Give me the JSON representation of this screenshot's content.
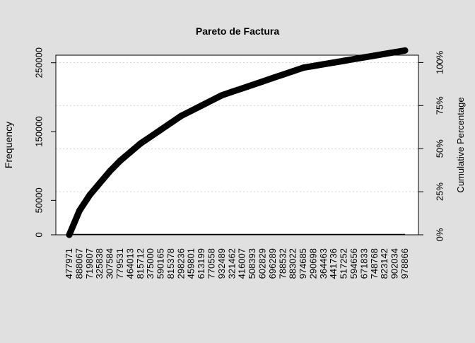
{
  "chart_data": {
    "type": "line",
    "title": "Pareto de Factura",
    "ylabel": "Frequency",
    "y2label": "Cumulative Percentage",
    "ylim": [
      0,
      261000
    ],
    "y_ticks": [
      0,
      50000,
      150000,
      250000
    ],
    "y_tick_labels": [
      "0",
      "50000",
      "150000",
      "250000"
    ],
    "y2_ticks": [
      0,
      25,
      50,
      75,
      100
    ],
    "y2_tick_labels": [
      "0%",
      "25%",
      "50%",
      "75%",
      "100%"
    ],
    "categories": [
      "477971",
      "888067",
      "719807",
      "325838",
      "307584",
      "779531",
      "464013",
      "815712",
      "375000",
      "590165",
      "815378",
      "298236",
      "459801",
      "613199",
      "770558",
      "932489",
      "321462",
      "416007",
      "508393",
      "602829",
      "696289",
      "788532",
      "883022",
      "974685",
      "290698",
      "364463",
      "441736",
      "517252",
      "594656",
      "671833",
      "748768",
      "823142",
      "902034",
      "978866"
    ],
    "series": [
      {
        "y2_values_pct": [
          0,
          14,
          23,
          30,
          37,
          43,
          48,
          53,
          57,
          61,
          65,
          69,
          72,
          75,
          78,
          81,
          83,
          85,
          87,
          89,
          91,
          93,
          95,
          97,
          98,
          99,
          100,
          101,
          102,
          103,
          104,
          105,
          106,
          107
        ]
      }
    ],
    "grid": "horizontal dotted at percentage ticks",
    "colors": {
      "line": "#000000",
      "background": "#e0e0e0",
      "plot_bg": "#ffffff",
      "grid": "#d0d0d0"
    }
  }
}
